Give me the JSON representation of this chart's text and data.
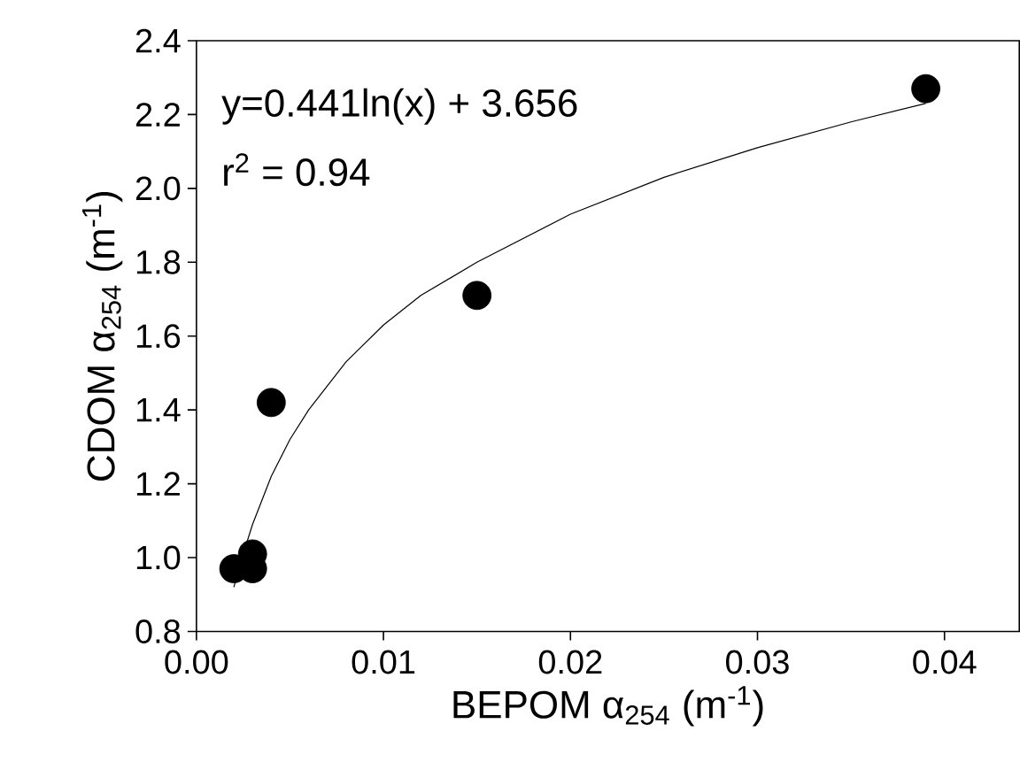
{
  "chart_data": {
    "type": "scatter",
    "xlabel": "BEPOM α$_{254}$ (m$^{-1}$)",
    "ylabel": "CDOM α$_{254}$ (m$^{-1}$)",
    "annotations": [
      "y=0.441ln(x) + 3.656",
      "r$^{2}$ = 0.94"
    ],
    "xlim": [
      0,
      0.044
    ],
    "ylim": [
      0.8,
      2.4
    ],
    "xticks": [
      {
        "value": 0,
        "label": "0.00"
      },
      {
        "value": 0.01,
        "label": "0.01"
      },
      {
        "value": 0.02,
        "label": "0.02"
      },
      {
        "value": 0.03,
        "label": "0.03"
      },
      {
        "value": 0.04,
        "label": "0.04"
      }
    ],
    "yticks": [
      {
        "value": 0.8,
        "label": "0.8"
      },
      {
        "value": 1.0,
        "label": "1.0"
      },
      {
        "value": 1.2,
        "label": "1.2"
      },
      {
        "value": 1.4,
        "label": "1.4"
      },
      {
        "value": 1.6,
        "label": "1.6"
      },
      {
        "value": 1.8,
        "label": "1.8"
      },
      {
        "value": 2.0,
        "label": "2.0"
      },
      {
        "value": 2.2,
        "label": "2.2"
      },
      {
        "value": 2.4,
        "label": "2.4"
      }
    ],
    "grid": false,
    "legend": false,
    "marker": "circle",
    "series": [
      {
        "color": "#000000",
        "x": [
          0.002,
          0.003,
          0.003,
          0.004,
          0.015,
          0.039
        ],
        "values": [
          0.97,
          0.97,
          1.01,
          1.42,
          1.71,
          2.27
        ]
      },
      {
        "type": "line",
        "marker": "none",
        "color": "#000000",
        "x": [
          0.002,
          0.0025,
          0.003,
          0.004,
          0.005,
          0.006,
          0.008,
          0.01,
          0.012,
          0.015,
          0.02,
          0.025,
          0.03,
          0.035,
          0.039
        ],
        "values": [
          0.92,
          1.01,
          1.09,
          1.22,
          1.32,
          1.4,
          1.53,
          1.63,
          1.71,
          1.8,
          1.93,
          2.03,
          2.11,
          2.18,
          2.23
        ]
      }
    ]
  }
}
